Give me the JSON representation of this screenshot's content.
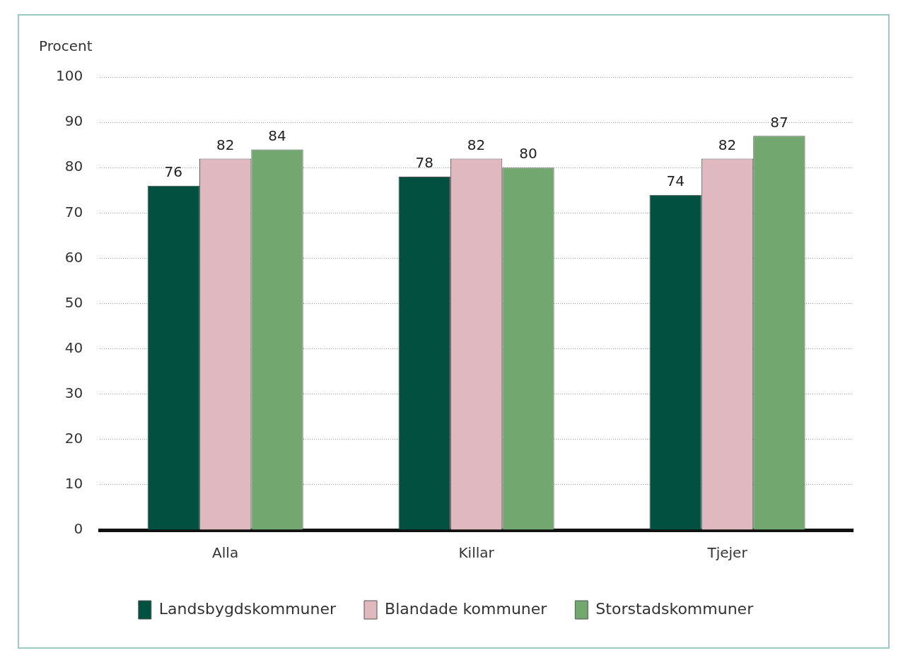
{
  "chart_data": {
    "type": "bar",
    "ylabel": "Procent",
    "categories": [
      "Alla",
      "Killar",
      "Tjejer"
    ],
    "series": [
      {
        "name": "Landsbygdskommuner",
        "color": "#02503f",
        "values": [
          76,
          78,
          74
        ]
      },
      {
        "name": "Blandade kommuner",
        "color": "#e0b9c0",
        "values": [
          82,
          82,
          82
        ]
      },
      {
        "name": "Storstadskommuner",
        "color": "#72a770",
        "values": [
          84,
          80,
          87
        ]
      }
    ],
    "ylim": [
      0,
      100
    ],
    "yticks": [
      0,
      10,
      20,
      30,
      40,
      50,
      60,
      70,
      80,
      90,
      100
    ],
    "grid": true,
    "legend": "bottom",
    "data_labels": true
  }
}
